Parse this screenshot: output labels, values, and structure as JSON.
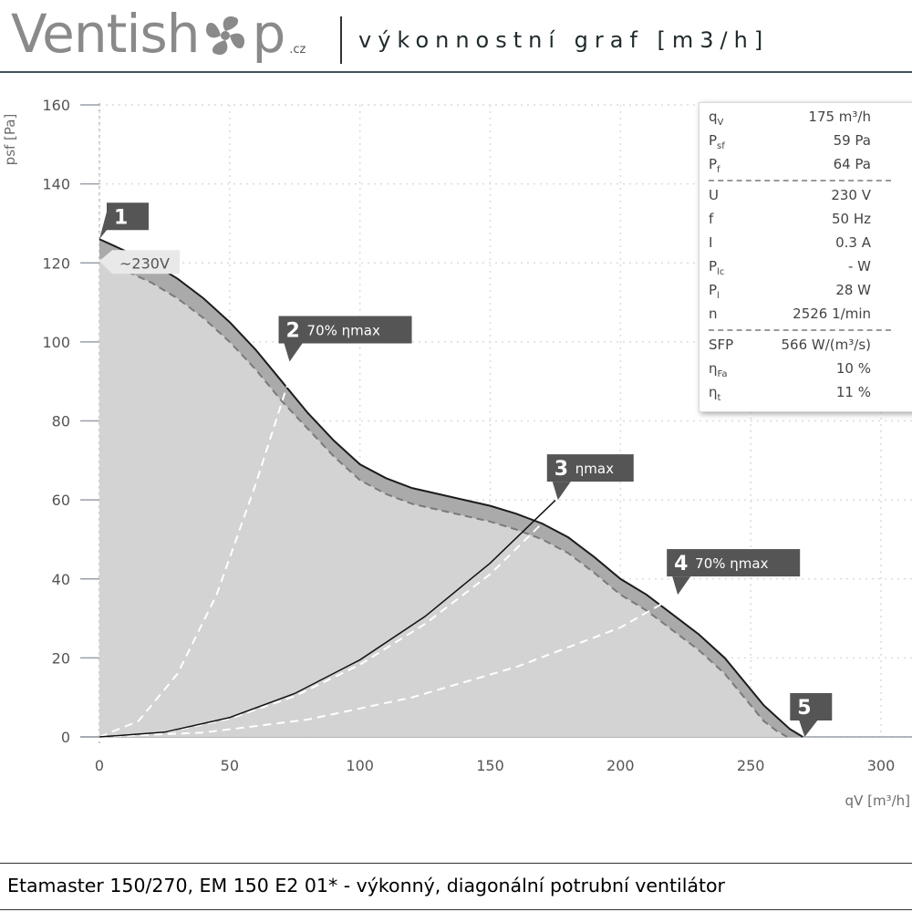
{
  "header": {
    "logo_left": "Ventish",
    "logo_right": "p",
    "logo_suffix": ".cz",
    "title": "výkonnostní graf [m3/h]"
  },
  "footer": {
    "text": "Etamaster 150/270, EM 150 E2 01* - výkonný, diagonální potrubní ventilátor"
  },
  "info": [
    {
      "key": "q",
      "sub": "V",
      "value": "175 m³/h"
    },
    {
      "key": "P",
      "sub": "sf",
      "value": "59 Pa"
    },
    {
      "key": "P",
      "sub": "f",
      "value": "64 Pa"
    },
    {
      "key": "U",
      "sub": "",
      "value": "230 V"
    },
    {
      "key": "f",
      "sub": "",
      "value": "50 Hz"
    },
    {
      "key": "I",
      "sub": "",
      "value": "0.3 A"
    },
    {
      "key": "P",
      "sub": "lc",
      "value": "- W"
    },
    {
      "key": "P",
      "sub": "l",
      "value": "28 W"
    },
    {
      "key": "n",
      "sub": "",
      "value": "2526 1/min"
    },
    {
      "key": "SFP",
      "sub": "",
      "value": "566 W/(m³/s)"
    },
    {
      "key": "η",
      "sub": "Fa",
      "value": "10 %"
    },
    {
      "key": "η",
      "sub": "t",
      "value": "11 %"
    }
  ],
  "chart_data": {
    "type": "line",
    "xlabel": "qV [m³/h]",
    "ylabel": "psf [Pa]",
    "xlim": [
      0,
      300
    ],
    "ylim": [
      0,
      160
    ],
    "xticks": [
      0,
      50,
      100,
      150,
      200,
      250,
      300
    ],
    "yticks": [
      0,
      20,
      40,
      60,
      80,
      100,
      120,
      140,
      160
    ],
    "grid": true,
    "series": [
      {
        "name": "~230V",
        "style": "solid",
        "x": [
          0,
          10,
          20,
          30,
          40,
          50,
          60,
          70,
          80,
          90,
          100,
          110,
          120,
          130,
          140,
          150,
          160,
          170,
          180,
          190,
          200,
          210,
          220,
          230,
          240,
          250,
          255,
          260,
          265,
          270
        ],
        "y": [
          126,
          123,
          120,
          116,
          111,
          105,
          98,
          90,
          82,
          75,
          69,
          65.5,
          63,
          61.5,
          60,
          58.5,
          56.5,
          54,
          50.5,
          45.5,
          40,
          36,
          31,
          26,
          20,
          12,
          8,
          5,
          2,
          0
        ]
      },
      {
        "name": "",
        "style": "dashed",
        "x": [
          3,
          10,
          20,
          30,
          40,
          50,
          60,
          70,
          80,
          90,
          100,
          110,
          120,
          130,
          140,
          150,
          160,
          170,
          180,
          190,
          200,
          210,
          220,
          230,
          240,
          250,
          255,
          260,
          264
        ],
        "y": [
          121,
          118,
          115,
          111,
          106,
          100,
          93,
          85,
          78,
          71,
          65,
          61.5,
          59,
          57.5,
          56,
          54.5,
          52.5,
          50,
          46.5,
          41.5,
          36,
          32,
          27,
          22,
          16,
          8,
          4,
          1.5,
          0
        ]
      },
      {
        "name": "",
        "style": "system",
        "x": [
          0,
          25,
          50,
          75,
          100,
          125,
          150,
          175
        ],
        "y": [
          0,
          1.2,
          4.9,
          11.0,
          19.5,
          30.5,
          44.0,
          59.9
        ]
      },
      {
        "name": "",
        "style": "eta-70-1",
        "x": [
          0,
          15,
          30,
          45,
          60,
          75
        ],
        "y": [
          0,
          4.0,
          16.0,
          36.0,
          64.0,
          95.0
        ]
      },
      {
        "name": "",
        "style": "eta-max",
        "x": [
          0,
          25,
          50,
          75,
          100,
          125,
          150,
          176
        ],
        "y": [
          0,
          1.1,
          4.6,
          10.3,
          18.3,
          28.6,
          41.2,
          58.0
        ]
      },
      {
        "name": "",
        "style": "eta-70-2",
        "x": [
          0,
          40,
          80,
          120,
          160,
          200,
          222
        ],
        "y": [
          0,
          1.1,
          4.4,
          10.0,
          17.7,
          27.7,
          36.0
        ]
      }
    ],
    "markers": [
      {
        "num": "1",
        "label": "",
        "x": 0,
        "y": 126
      },
      {
        "num": "2",
        "label": "70% ηmax",
        "x": 73,
        "y": 95
      },
      {
        "num": "3",
        "label": "ηmax",
        "x": 176,
        "y": 60
      },
      {
        "num": "4",
        "label": "70% ηmax",
        "x": 222,
        "y": 36
      },
      {
        "num": "5",
        "label": "",
        "x": 270,
        "y": 0
      }
    ],
    "series_label": "~230V"
  }
}
